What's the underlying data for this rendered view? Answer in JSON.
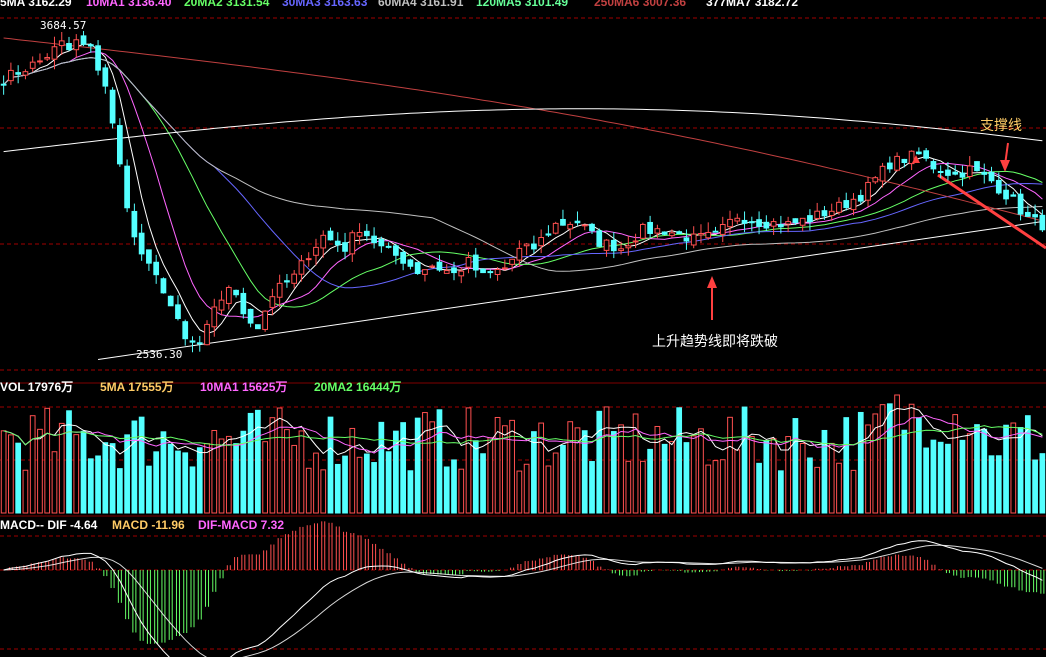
{
  "colors": {
    "background": "#000000",
    "up": "#ff5050",
    "down": "#54ffff",
    "grid": "#a00000",
    "ma5": "#ffffff",
    "ma10": "#ff66ff",
    "ma20": "#66ff66",
    "ma30": "#6666ff",
    "ma60": "#c0c0c0",
    "ma120": "#66ff99",
    "ma250": "#c04040",
    "ma377": "#ffffff",
    "annotation": "#ffcc66",
    "arrow": "#ff4040",
    "trendline": "#ffffff"
  },
  "legend": {
    "price": [
      {
        "key": "ma5",
        "text": "5MA 3162.29"
      },
      {
        "key": "ma10",
        "text": "10MA1 3136.40"
      },
      {
        "key": "ma20",
        "text": "20MA2 3131.54"
      },
      {
        "key": "ma30",
        "text": "30MA3 3163.63"
      },
      {
        "key": "ma60",
        "text": "60MA4 3161.91"
      },
      {
        "key": "ma120",
        "text": "120MA5 3101.49"
      },
      {
        "key": "ma250",
        "text": "250MA6 3007.36"
      },
      {
        "key": "ma377",
        "text": "377MA7 3182.72"
      }
    ],
    "volume": [
      {
        "key": "ma5",
        "text": "VOL 17976万"
      },
      {
        "key": "annotation",
        "text": "5MA 17555万"
      },
      {
        "key": "ma10",
        "text": "10MA1 15625万"
      },
      {
        "key": "ma20",
        "text": "20MA2 16444万"
      }
    ],
    "macd": [
      {
        "key": "ma5",
        "text": "MACD-- DIF -4.64"
      },
      {
        "key": "annotation",
        "text": "MACD -11.96"
      },
      {
        "key": "ma10",
        "text": "DIF-MACD 7.32"
      }
    ]
  },
  "annotations": {
    "high_label": "3684.57",
    "low_label": "2536.30",
    "support_label": "支撑线",
    "trend_label": "上升趋势线即将跌破"
  },
  "chart_data": {
    "type": "candlestick",
    "ylim": [
      2500,
      3750
    ],
    "high": 3684.57,
    "low": 2536.3,
    "grid": true,
    "close_path": [
      [
        0,
        3500
      ],
      [
        5,
        3560
      ],
      [
        9,
        3640
      ],
      [
        12,
        3600
      ],
      [
        14,
        3480
      ],
      [
        16,
        3200
      ],
      [
        18,
        2950
      ],
      [
        20,
        2850
      ],
      [
        22,
        2780
      ],
      [
        25,
        2600
      ],
      [
        27,
        2580
      ],
      [
        29,
        2700
      ],
      [
        31,
        2790
      ],
      [
        33,
        2700
      ],
      [
        35,
        2650
      ],
      [
        37,
        2760
      ],
      [
        40,
        2820
      ],
      [
        42,
        2900
      ],
      [
        44,
        2960
      ],
      [
        47,
        2920
      ],
      [
        49,
        2990
      ],
      [
        52,
        2920
      ],
      [
        55,
        2880
      ],
      [
        57,
        2840
      ],
      [
        59,
        2860
      ],
      [
        62,
        2830
      ],
      [
        64,
        2870
      ],
      [
        66,
        2820
      ],
      [
        69,
        2850
      ],
      [
        71,
        2910
      ],
      [
        73,
        2920
      ],
      [
        76,
        3000
      ],
      [
        79,
        3010
      ],
      [
        82,
        2940
      ],
      [
        85,
        2920
      ],
      [
        88,
        2980
      ],
      [
        91,
        2980
      ],
      [
        95,
        2950
      ],
      [
        98,
        2960
      ],
      [
        101,
        3030
      ],
      [
        104,
        3010
      ],
      [
        108,
        3000
      ],
      [
        111,
        3020
      ],
      [
        115,
        3060
      ],
      [
        118,
        3100
      ],
      [
        122,
        3210
      ],
      [
        126,
        3240
      ],
      [
        128,
        3200
      ],
      [
        131,
        3170
      ],
      [
        133,
        3190
      ],
      [
        136,
        3150
      ],
      [
        139,
        3080
      ],
      [
        141,
        3020
      ],
      [
        143,
        3000
      ]
    ],
    "trendline": {
      "from": [
        13,
        2536
      ],
      "to": [
        143,
        3010
      ]
    }
  }
}
